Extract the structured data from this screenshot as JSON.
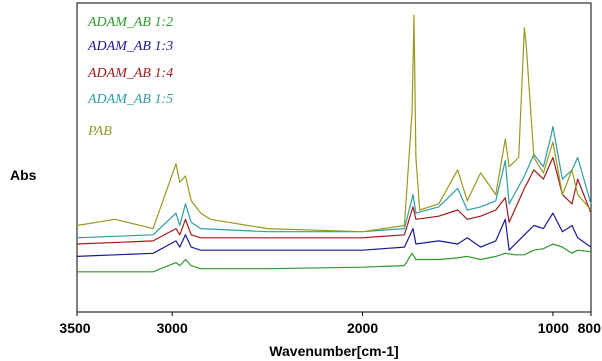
{
  "chart_data": {
    "type": "line",
    "title": "",
    "xlabel": "Wavenumber[cm-1]",
    "ylabel": "Abs",
    "x_reversed": true,
    "xlim": [
      3500,
      800
    ],
    "ylim": [
      0,
      1
    ],
    "x_ticks": [
      {
        "value": 3500,
        "label": "3500"
      },
      {
        "value": 3000,
        "label": "3000"
      },
      {
        "value": 2000,
        "label": "2000"
      },
      {
        "value": 1000,
        "label": "1000"
      },
      {
        "value": 800,
        "label": "800"
      }
    ],
    "grid": false,
    "legend_position": "top-left",
    "series": [
      {
        "name": "ADAM_AB 1:2",
        "color": "#2e9b2e",
        "points": [
          [
            3500,
            0.13
          ],
          [
            3100,
            0.13
          ],
          [
            2980,
            0.16
          ],
          [
            2960,
            0.15
          ],
          [
            2930,
            0.17
          ],
          [
            2900,
            0.15
          ],
          [
            2850,
            0.14
          ],
          [
            2500,
            0.14
          ],
          [
            2000,
            0.145
          ],
          [
            1780,
            0.15
          ],
          [
            1740,
            0.19
          ],
          [
            1720,
            0.17
          ],
          [
            1600,
            0.17
          ],
          [
            1500,
            0.175
          ],
          [
            1450,
            0.18
          ],
          [
            1380,
            0.17
          ],
          [
            1300,
            0.18
          ],
          [
            1250,
            0.19
          ],
          [
            1200,
            0.185
          ],
          [
            1150,
            0.185
          ],
          [
            1100,
            0.2
          ],
          [
            1050,
            0.205
          ],
          [
            1000,
            0.22
          ],
          [
            950,
            0.21
          ],
          [
            900,
            0.19
          ],
          [
            870,
            0.2
          ],
          [
            800,
            0.195
          ]
        ]
      },
      {
        "name": "ADAM_AB 1:3",
        "color": "#1a1a99",
        "points": [
          [
            3500,
            0.18
          ],
          [
            3100,
            0.19
          ],
          [
            2980,
            0.23
          ],
          [
            2960,
            0.21
          ],
          [
            2930,
            0.25
          ],
          [
            2900,
            0.21
          ],
          [
            2850,
            0.2
          ],
          [
            2500,
            0.2
          ],
          [
            2000,
            0.2
          ],
          [
            1780,
            0.21
          ],
          [
            1735,
            0.27
          ],
          [
            1720,
            0.22
          ],
          [
            1600,
            0.23
          ],
          [
            1500,
            0.22
          ],
          [
            1450,
            0.24
          ],
          [
            1380,
            0.21
          ],
          [
            1300,
            0.23
          ],
          [
            1250,
            0.3
          ],
          [
            1230,
            0.2
          ],
          [
            1150,
            0.25
          ],
          [
            1100,
            0.28
          ],
          [
            1050,
            0.27
          ],
          [
            1000,
            0.32
          ],
          [
            950,
            0.26
          ],
          [
            900,
            0.28
          ],
          [
            870,
            0.24
          ],
          [
            800,
            0.21
          ]
        ]
      },
      {
        "name": "ADAM_AB 1:4",
        "color": "#a01c1c",
        "points": [
          [
            3500,
            0.22
          ],
          [
            3100,
            0.23
          ],
          [
            2980,
            0.27
          ],
          [
            2960,
            0.25
          ],
          [
            2930,
            0.3
          ],
          [
            2900,
            0.25
          ],
          [
            2850,
            0.24
          ],
          [
            2500,
            0.24
          ],
          [
            2000,
            0.24
          ],
          [
            1780,
            0.25
          ],
          [
            1735,
            0.34
          ],
          [
            1720,
            0.3
          ],
          [
            1600,
            0.31
          ],
          [
            1500,
            0.33
          ],
          [
            1450,
            0.3
          ],
          [
            1380,
            0.31
          ],
          [
            1300,
            0.33
          ],
          [
            1250,
            0.37
          ],
          [
            1230,
            0.29
          ],
          [
            1150,
            0.4
          ],
          [
            1100,
            0.46
          ],
          [
            1050,
            0.43
          ],
          [
            1000,
            0.5
          ],
          [
            950,
            0.38
          ],
          [
            900,
            0.35
          ],
          [
            870,
            0.43
          ],
          [
            800,
            0.32
          ]
        ]
      },
      {
        "name": "ADAM_AB 1:5",
        "color": "#2e9da3",
        "points": [
          [
            3500,
            0.24
          ],
          [
            3100,
            0.25
          ],
          [
            2980,
            0.32
          ],
          [
            2960,
            0.28
          ],
          [
            2930,
            0.35
          ],
          [
            2900,
            0.29
          ],
          [
            2850,
            0.27
          ],
          [
            2500,
            0.26
          ],
          [
            2000,
            0.26
          ],
          [
            1780,
            0.27
          ],
          [
            1735,
            0.38
          ],
          [
            1720,
            0.32
          ],
          [
            1600,
            0.34
          ],
          [
            1500,
            0.4
          ],
          [
            1450,
            0.33
          ],
          [
            1380,
            0.34
          ],
          [
            1300,
            0.36
          ],
          [
            1250,
            0.49
          ],
          [
            1230,
            0.35
          ],
          [
            1150,
            0.44
          ],
          [
            1100,
            0.51
          ],
          [
            1050,
            0.47
          ],
          [
            1010,
            0.57
          ],
          [
            1000,
            0.6
          ],
          [
            950,
            0.43
          ],
          [
            900,
            0.46
          ],
          [
            870,
            0.5
          ],
          [
            800,
            0.35
          ]
        ]
      },
      {
        "name": "PAB",
        "color": "#999922",
        "points": [
          [
            3500,
            0.28
          ],
          [
            3300,
            0.3
          ],
          [
            3100,
            0.27
          ],
          [
            2980,
            0.48
          ],
          [
            2960,
            0.42
          ],
          [
            2930,
            0.44
          ],
          [
            2900,
            0.36
          ],
          [
            2850,
            0.32
          ],
          [
            2800,
            0.3
          ],
          [
            2500,
            0.27
          ],
          [
            2000,
            0.26
          ],
          [
            1780,
            0.28
          ],
          [
            1740,
            0.65
          ],
          [
            1730,
            0.96
          ],
          [
            1720,
            0.5
          ],
          [
            1700,
            0.33
          ],
          [
            1600,
            0.35
          ],
          [
            1500,
            0.46
          ],
          [
            1450,
            0.36
          ],
          [
            1380,
            0.45
          ],
          [
            1300,
            0.38
          ],
          [
            1250,
            0.56
          ],
          [
            1230,
            0.47
          ],
          [
            1180,
            0.5
          ],
          [
            1150,
            0.92
          ],
          [
            1140,
            0.86
          ],
          [
            1100,
            0.5
          ],
          [
            1050,
            0.45
          ],
          [
            1000,
            0.55
          ],
          [
            950,
            0.38
          ],
          [
            900,
            0.46
          ],
          [
            870,
            0.38
          ],
          [
            800,
            0.33
          ]
        ]
      }
    ]
  }
}
